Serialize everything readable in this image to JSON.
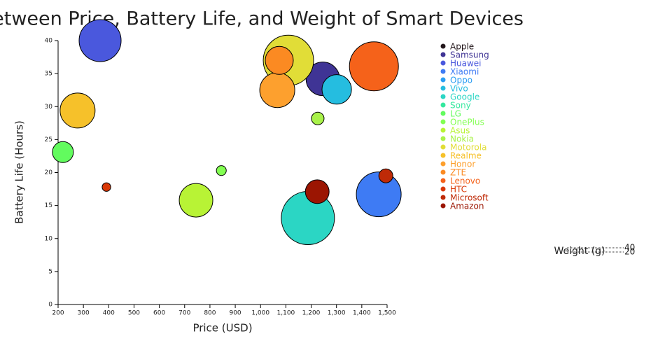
{
  "chart_data": {
    "type": "bubble",
    "title": "Correlation Between Price, Battery Life, and Weight of Smart Devices",
    "x_label": "Price (USD)",
    "y_label": "Battery Life (Hours)",
    "size_label": "Weight (g)",
    "size_ticks": [
      40,
      20
    ],
    "xlim": [
      200,
      1500
    ],
    "ylim": [
      0,
      40
    ],
    "xticks": [
      200,
      300,
      400,
      500,
      600,
      700,
      800,
      900,
      {
        "value": 1000,
        "label": "1,000"
      },
      {
        "value": 1100,
        "label": "1,100"
      },
      {
        "value": 1200,
        "label": "1,200"
      },
      {
        "value": 1300,
        "label": "1,300"
      },
      {
        "value": 1400,
        "label": "1,400"
      },
      {
        "value": 1500,
        "label": "1,500"
      }
    ],
    "yticks": [
      0,
      5,
      10,
      15,
      20,
      25,
      30,
      35,
      40
    ],
    "series": [
      {
        "name": "Apple",
        "color": "#23171b",
        "x": [],
        "values": [],
        "sizes": []
      },
      {
        "name": "Samsung",
        "color": "#3f3495",
        "x": [
          1246
        ],
        "values": [
          34.2
        ],
        "sizes": [
          92
        ]
      },
      {
        "name": "Huawei",
        "color": "#4a58dd",
        "x": [
          366
        ],
        "values": [
          40
        ],
        "sizes": [
          144
        ]
      },
      {
        "name": "Xiaomi",
        "color": "#3e7bf4",
        "x": [
          1467
        ],
        "values": [
          16.7
        ],
        "sizes": [
          164
        ]
      },
      {
        "name": "Oppo",
        "color": "#2a9df3",
        "x": [],
        "values": [],
        "sizes": []
      },
      {
        "name": "Vivo",
        "color": "#25bde0",
        "x": [
          1301
        ],
        "values": [
          32.6
        ],
        "sizes": [
          71
        ]
      },
      {
        "name": "Google",
        "color": "#2bd6c4",
        "x": [
          1187
        ],
        "values": [
          13.1
        ],
        "sizes": [
          231
        ]
      },
      {
        "name": "Sony",
        "color": "#34e89e",
        "x": [],
        "values": [],
        "sizes": []
      },
      {
        "name": "LG",
        "color": "#62fb5e",
        "x": [
          219
        ],
        "values": [
          23.1
        ],
        "sizes": [
          36
        ]
      },
      {
        "name": "OnePlus",
        "color": "#83ff52",
        "x": [
          845
        ],
        "values": [
          20.3
        ],
        "sizes": [
          8
        ]
      },
      {
        "name": "Asus",
        "color": "#b8f335",
        "x": [
          745
        ],
        "values": [
          15.8
        ],
        "sizes": [
          92
        ]
      },
      {
        "name": "Nokia",
        "color": "#a9f24a",
        "x": [
          1226
        ],
        "values": [
          28.2
        ],
        "sizes": [
          13
        ]
      },
      {
        "name": "Motorola",
        "color": "#e1dd37",
        "x": [
          1110
        ],
        "values": [
          37.0
        ],
        "sizes": [
          207
        ]
      },
      {
        "name": "Realme",
        "color": "#f6c12a",
        "x": [
          277
        ],
        "values": [
          29.4
        ],
        "sizes": [
          100
        ]
      },
      {
        "name": "Honor",
        "color": "#fda02e",
        "x": [
          1066
        ],
        "values": [
          32.5
        ],
        "sizes": [
          100
        ]
      },
      {
        "name": "ZTE",
        "color": "#fb8a22",
        "x": [
          1074
        ],
        "values": [
          37.0
        ],
        "sizes": [
          64
        ]
      },
      {
        "name": "Lenovo",
        "color": "#f5621a",
        "x": [
          1448
        ],
        "values": [
          36.1
        ],
        "sizes": [
          196
        ]
      },
      {
        "name": "HTC",
        "color": "#d93806",
        "x": [
          391
        ],
        "values": [
          17.8
        ],
        "sizes": [
          6
        ]
      },
      {
        "name": "Microsoft",
        "color": "#bf2a07",
        "x": [
          1495
        ],
        "values": [
          19.5
        ],
        "sizes": [
          16
        ]
      },
      {
        "name": "Amazon",
        "color": "#9b1502",
        "x": [
          1224
        ],
        "values": [
          17.1
        ],
        "sizes": [
          46
        ]
      }
    ]
  }
}
